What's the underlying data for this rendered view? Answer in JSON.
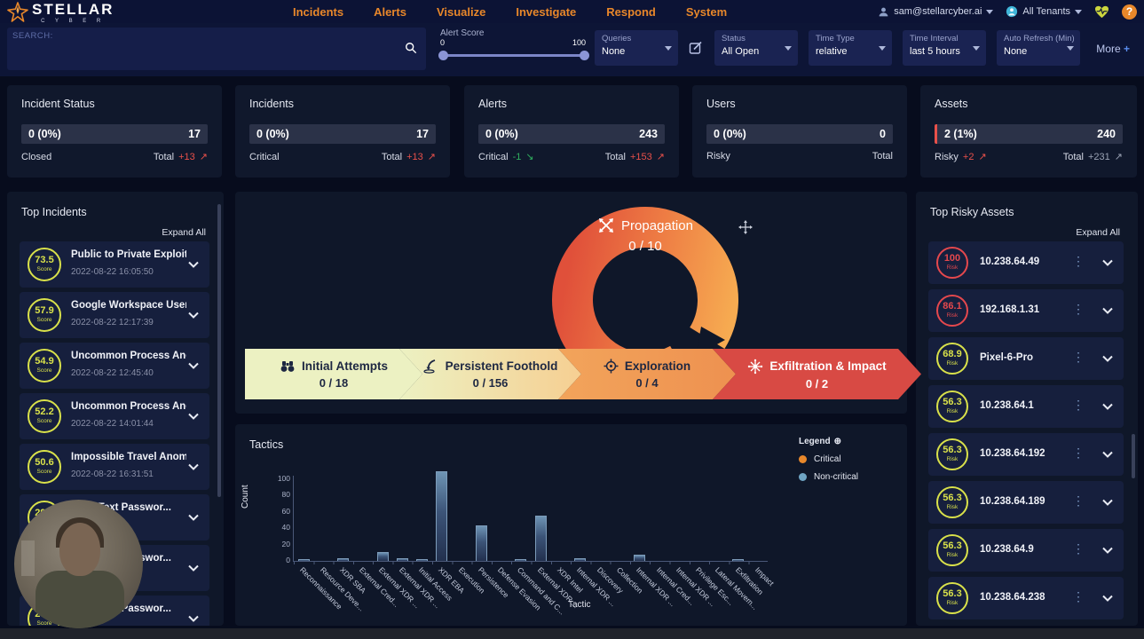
{
  "brand": {
    "name": "STELLAR",
    "sub": "C Y B E R"
  },
  "nav": {
    "items": [
      "Incidents",
      "Alerts",
      "Visualize",
      "Investigate",
      "Respond",
      "System"
    ]
  },
  "account": {
    "user": "sam@stellarcyber.ai",
    "tenant": "All Tenants"
  },
  "filters": {
    "search_label": "SEARCH:",
    "alert_score": {
      "label": "Alert Score",
      "min": "0",
      "max": "100"
    },
    "dropdowns": [
      {
        "label": "Queries",
        "value": "None"
      },
      {
        "label": "Status",
        "value": "All Open"
      },
      {
        "label": "Time Type",
        "value": "relative"
      },
      {
        "label": "Time Interval",
        "value": "last 5 hours"
      },
      {
        "label": "Auto Refresh (Min)",
        "value": "None"
      }
    ],
    "more_label": "More",
    "more_plus": "+"
  },
  "summary_cards": [
    {
      "title": "Incident Status",
      "bar_left": "0 (0%)",
      "bar_right": "17",
      "foot_left": "Closed",
      "foot_right": "Total",
      "right_delta": {
        "text": "+13",
        "arrow": "↗"
      }
    },
    {
      "title": "Incidents",
      "bar_left": "0 (0%)",
      "bar_right": "17",
      "foot_left": "Critical",
      "foot_right": "Total",
      "right_delta": {
        "text": "+13",
        "arrow": "↗"
      }
    },
    {
      "title": "Alerts",
      "bar_left": "0 (0%)",
      "bar_right": "243",
      "foot_left": "Critical",
      "left_delta": {
        "text": "-1",
        "arrow": "↘"
      },
      "foot_right": "Total",
      "right_delta": {
        "text": "+153",
        "arrow": "↗"
      }
    },
    {
      "title": "Users",
      "bar_left": "0 (0%)",
      "bar_right": "0",
      "foot_left": "Risky",
      "foot_right": "Total"
    },
    {
      "title": "Assets",
      "bar_left": "2 (1%)",
      "bar_right": "240",
      "foot_left": "Risky",
      "left_delta": {
        "text": "+2",
        "arrow": "↗"
      },
      "foot_right": "Total",
      "right_delta": {
        "text": "+231",
        "arrow": "↗"
      }
    }
  ],
  "top_incidents": {
    "title": "Top Incidents",
    "expand": "Expand All",
    "badge_label": "Score",
    "items": [
      {
        "score": "73.5",
        "name": "Public to Private Exploit An...",
        "time": "2022-08-22 16:05:50"
      },
      {
        "score": "57.9",
        "name": "Google Workspace User Su...",
        "time": "2022-08-22 12:17:39"
      },
      {
        "score": "54.9",
        "name": "Uncommon Process Anom...",
        "time": "2022-08-22 12:45:40"
      },
      {
        "score": "52.2",
        "name": "Uncommon Process Anom...",
        "time": "2022-08-22 14:01:44"
      },
      {
        "score": "50.6",
        "name": "Impossible Travel Anomaly",
        "time": "2022-08-22 16:31:51"
      },
      {
        "score": "29.5",
        "name": "Plain Text Passwor...",
        "time": ""
      },
      {
        "score": "29.5",
        "name": "Plain Text Passwor...",
        "time": ""
      },
      {
        "score": "29.5",
        "name": "Plain Text Passwor...",
        "time": ""
      }
    ]
  },
  "kill_chain": {
    "donut": {
      "label": "Propagation",
      "count": "0 / 10"
    },
    "stages": [
      {
        "label": "Initial Attempts",
        "count": "0 / 18"
      },
      {
        "label": "Persistent Foothold",
        "count": "0 / 156"
      },
      {
        "label": "Exploration",
        "count": "0 / 4"
      },
      {
        "label": "Exfiltration & Impact",
        "count": "0 / 2"
      }
    ]
  },
  "chart_data": {
    "type": "bar",
    "title": "Tactics",
    "xlabel": "Tactic",
    "ylabel": "Count",
    "ylim": [
      0,
      110
    ],
    "yticks": [
      0,
      20,
      40,
      60,
      80,
      100
    ],
    "grid": false,
    "legend": {
      "title": "Legend",
      "position": "top-right",
      "entries": [
        {
          "label": "Critical",
          "color": "#e8882b"
        },
        {
          "label": "Non-critical",
          "color": "#6fa5c4"
        }
      ]
    },
    "categories": [
      "Reconnaissance",
      "Resource Deve...",
      "XDR SBA",
      "External Cred...",
      "External XDR ...",
      "External XDR ...",
      "Initial Access",
      "XDR EBA",
      "Execution",
      "Persistence",
      "Defense Evasion",
      "Command and C...",
      "External XDR ...",
      "XDR Intel",
      "Internal XDR ...",
      "Discovery",
      "Collection",
      "Internal XDR ...",
      "Internal Cred...",
      "Internal XDR ...",
      "Privilege Esc...",
      "Lateral Movem...",
      "Exfiltration",
      "Impact"
    ],
    "values": [
      1,
      0,
      3,
      0,
      11,
      3,
      1,
      110,
      0,
      43,
      0,
      2,
      55,
      0,
      3,
      0,
      0,
      8,
      0,
      0,
      0,
      0,
      2,
      0
    ]
  },
  "top_risky_assets": {
    "title": "Top Risky Assets",
    "expand": "Expand All",
    "badge_label": "Risk",
    "items": [
      {
        "risk": "100",
        "name": "10.238.64.49",
        "level": "red"
      },
      {
        "risk": "86.1",
        "name": "192.168.1.31",
        "level": "red"
      },
      {
        "risk": "68.9",
        "name": "Pixel-6-Pro",
        "level": "yellow"
      },
      {
        "risk": "56.3",
        "name": "10.238.64.1",
        "level": "yellow"
      },
      {
        "risk": "56.3",
        "name": "10.238.64.192",
        "level": "yellow"
      },
      {
        "risk": "56.3",
        "name": "10.238.64.189",
        "level": "yellow"
      },
      {
        "risk": "56.3",
        "name": "10.238.64.9",
        "level": "yellow"
      },
      {
        "risk": "56.3",
        "name": "10.238.64.238",
        "level": "yellow"
      }
    ]
  }
}
